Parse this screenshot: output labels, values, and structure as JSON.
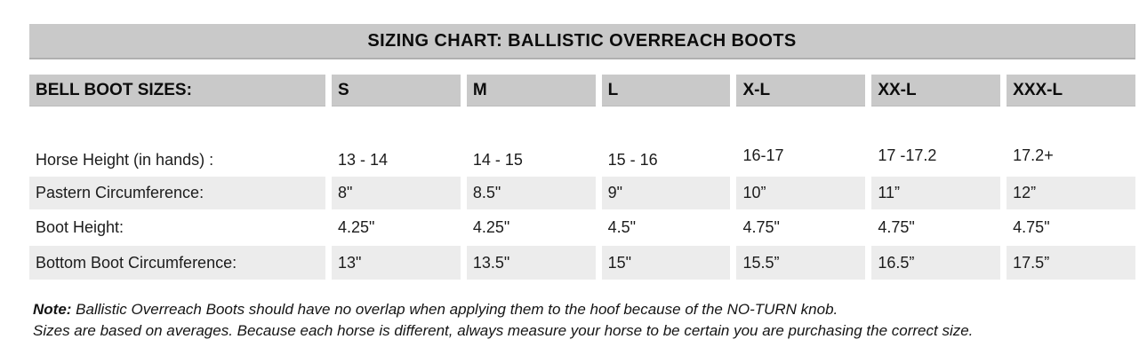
{
  "title": "SIZING CHART: BALLISTIC OVERREACH BOOTS",
  "colors": {
    "header_bar": "#c9c9c9",
    "shaded_row": "#ececec",
    "background": "#ffffff",
    "text": "#111111"
  },
  "table": {
    "header_label": "BELL BOOT SIZES:",
    "columns": [
      "S",
      "M",
      "L",
      "X-L",
      "XX-L",
      "XXX-L"
    ],
    "rows": [
      {
        "label": "Horse Height (in hands) :",
        "values": [
          "13 - 14",
          "14 - 15",
          "15 - 16",
          "16-17",
          "17 -17.2",
          "17.2+"
        ]
      },
      {
        "label": "Pastern Circumference:",
        "values": [
          "8\"",
          "8.5\"",
          "9\"",
          "10”",
          "11”",
          "12”"
        ]
      },
      {
        "label": "Boot Height:",
        "values": [
          "4.25\"",
          "4.25\"",
          "4.5\"",
          "4.75\"",
          "4.75\"",
          "4.75\""
        ]
      },
      {
        "label": "Bottom Boot Circumference:",
        "values": [
          "13\"",
          "13.5\"",
          "15\"",
          "15.5”",
          "16.5”",
          "17.5”"
        ]
      }
    ]
  },
  "note": {
    "prefix": "Note:",
    "line1": " Ballistic Overreach Boots should have no overlap when applying them to the hoof because of the NO-TURN knob.",
    "line2": "Sizes are based on averages. Because each horse is different, always measure your horse to be certain you are purchasing the correct size."
  }
}
